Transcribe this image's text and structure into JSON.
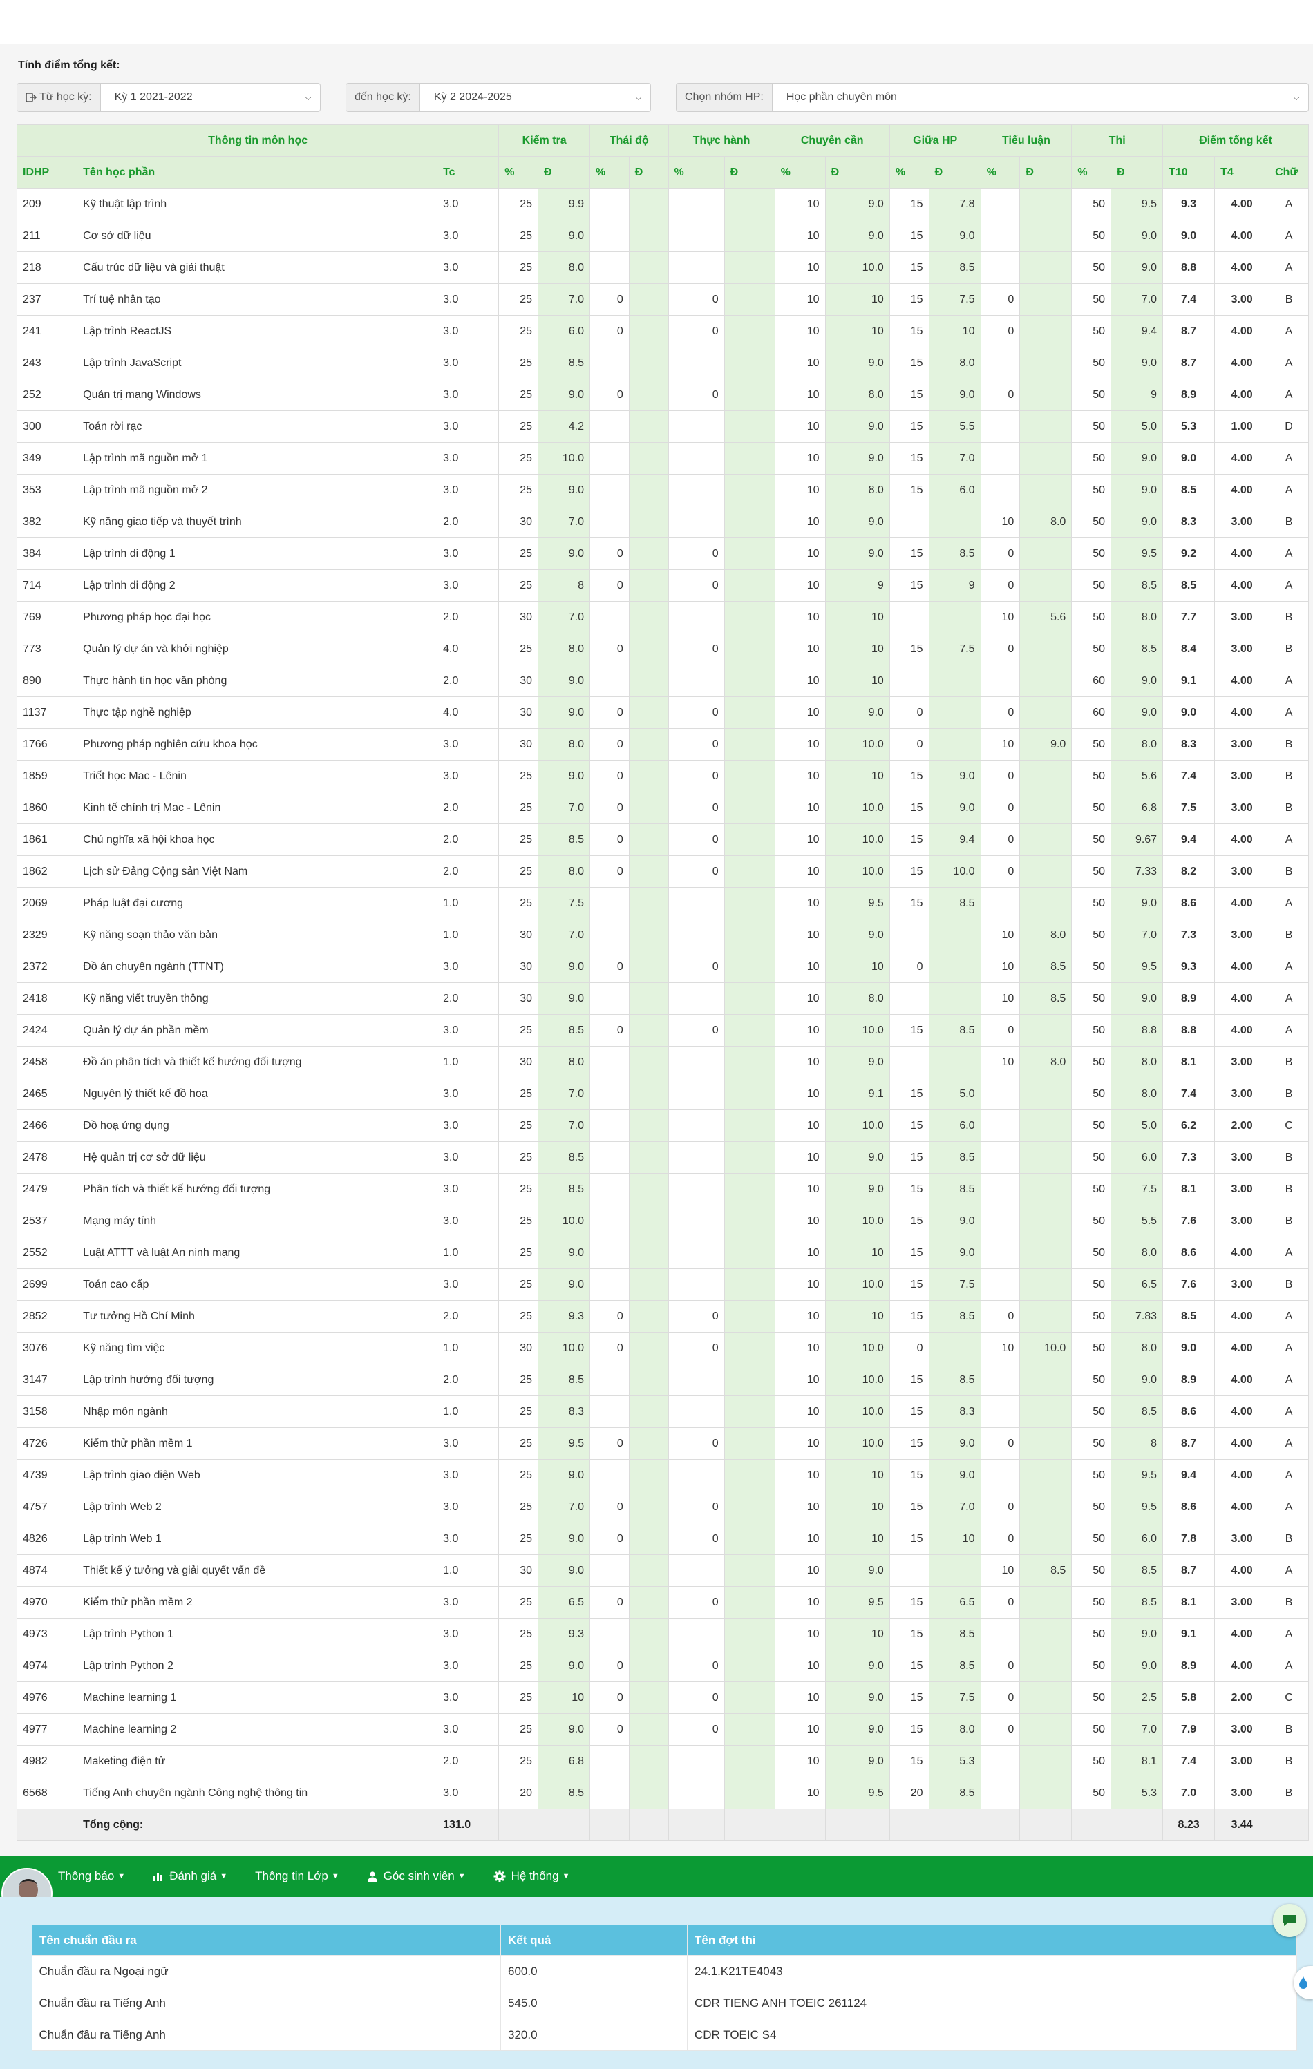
{
  "filters": {
    "title": "Tính điểm tổng kết:",
    "from_label": "Từ học kỳ:",
    "from_value": "Kỳ 1 2021-2022",
    "to_label": "đến học kỳ:",
    "to_value": "Kỳ 2 2024-2025",
    "group_label": "Chọn nhóm HP:",
    "group_value": "Học phần chuyên môn"
  },
  "grades_table": {
    "groups": [
      "Thông tin môn học",
      "Kiểm tra",
      "Thái độ",
      "Thực hành",
      "Chuyên cần",
      "Giữa HP",
      "Tiểu luận",
      "Thi",
      "Điểm tổng kết"
    ],
    "columns": [
      "IDHP",
      "Tên học phần",
      "Tc",
      "%",
      "Đ",
      "%",
      "Đ",
      "%",
      "Đ",
      "%",
      "Đ",
      "%",
      "Đ",
      "%",
      "Đ",
      "%",
      "Đ",
      "T10",
      "T4",
      "Chữ"
    ],
    "rows": [
      [
        "209",
        "Kỹ thuật lập trình",
        "3.0",
        "25",
        "9.9",
        "",
        "",
        "",
        "",
        "10",
        "9.0",
        "15",
        "7.8",
        "",
        "",
        "50",
        "9.5",
        "9.3",
        "4.00",
        "A"
      ],
      [
        "211",
        "Cơ sở dữ liệu",
        "3.0",
        "25",
        "9.0",
        "",
        "",
        "",
        "",
        "10",
        "9.0",
        "15",
        "9.0",
        "",
        "",
        "50",
        "9.0",
        "9.0",
        "4.00",
        "A"
      ],
      [
        "218",
        "Cấu trúc dữ liệu và giải thuật",
        "3.0",
        "25",
        "8.0",
        "",
        "",
        "",
        "",
        "10",
        "10.0",
        "15",
        "8.5",
        "",
        "",
        "50",
        "9.0",
        "8.8",
        "4.00",
        "A"
      ],
      [
        "237",
        "Trí tuệ nhân tạo",
        "3.0",
        "25",
        "7.0",
        "0",
        "",
        "0",
        "",
        "10",
        "10",
        "15",
        "7.5",
        "0",
        "",
        "50",
        "7.0",
        "7.4",
        "3.00",
        "B"
      ],
      [
        "241",
        "Lập trình ReactJS",
        "3.0",
        "25",
        "6.0",
        "0",
        "",
        "0",
        "",
        "10",
        "10",
        "15",
        "10",
        "0",
        "",
        "50",
        "9.4",
        "8.7",
        "4.00",
        "A"
      ],
      [
        "243",
        "Lập trình JavaScript",
        "3.0",
        "25",
        "8.5",
        "",
        "",
        "",
        "",
        "10",
        "9.0",
        "15",
        "8.0",
        "",
        "",
        "50",
        "9.0",
        "8.7",
        "4.00",
        "A"
      ],
      [
        "252",
        "Quản trị mạng Windows",
        "3.0",
        "25",
        "9.0",
        "0",
        "",
        "0",
        "",
        "10",
        "8.0",
        "15",
        "9.0",
        "0",
        "",
        "50",
        "9",
        "8.9",
        "4.00",
        "A"
      ],
      [
        "300",
        "Toán rời rạc",
        "3.0",
        "25",
        "4.2",
        "",
        "",
        "",
        "",
        "10",
        "9.0",
        "15",
        "5.5",
        "",
        "",
        "50",
        "5.0",
        "5.3",
        "1.00",
        "D"
      ],
      [
        "349",
        "Lập trình mã nguồn mở 1",
        "3.0",
        "25",
        "10.0",
        "",
        "",
        "",
        "",
        "10",
        "9.0",
        "15",
        "7.0",
        "",
        "",
        "50",
        "9.0",
        "9.0",
        "4.00",
        "A"
      ],
      [
        "353",
        "Lập trình mã nguồn mở 2",
        "3.0",
        "25",
        "9.0",
        "",
        "",
        "",
        "",
        "10",
        "8.0",
        "15",
        "6.0",
        "",
        "",
        "50",
        "9.0",
        "8.5",
        "4.00",
        "A"
      ],
      [
        "382",
        "Kỹ năng giao tiếp và thuyết trình",
        "2.0",
        "30",
        "7.0",
        "",
        "",
        "",
        "",
        "10",
        "9.0",
        "",
        "",
        "10",
        "8.0",
        "50",
        "9.0",
        "8.3",
        "3.00",
        "B"
      ],
      [
        "384",
        "Lập trình di động 1",
        "3.0",
        "25",
        "9.0",
        "0",
        "",
        "0",
        "",
        "10",
        "9.0",
        "15",
        "8.5",
        "0",
        "",
        "50",
        "9.5",
        "9.2",
        "4.00",
        "A"
      ],
      [
        "714",
        "Lập trình di động 2",
        "3.0",
        "25",
        "8",
        "0",
        "",
        "0",
        "",
        "10",
        "9",
        "15",
        "9",
        "0",
        "",
        "50",
        "8.5",
        "8.5",
        "4.00",
        "A"
      ],
      [
        "769",
        "Phương pháp học đại học",
        "2.0",
        "30",
        "7.0",
        "",
        "",
        "",
        "",
        "10",
        "10",
        "",
        "",
        "10",
        "5.6",
        "50",
        "8.0",
        "7.7",
        "3.00",
        "B"
      ],
      [
        "773",
        "Quản lý dự án và khởi nghiệp",
        "4.0",
        "25",
        "8.0",
        "0",
        "",
        "0",
        "",
        "10",
        "10",
        "15",
        "7.5",
        "0",
        "",
        "50",
        "8.5",
        "8.4",
        "3.00",
        "B"
      ],
      [
        "890",
        "Thực hành tin học văn phòng",
        "2.0",
        "30",
        "9.0",
        "",
        "",
        "",
        "",
        "10",
        "10",
        "",
        "",
        "",
        "",
        "60",
        "9.0",
        "9.1",
        "4.00",
        "A"
      ],
      [
        "1137",
        "Thực tập nghề nghiệp",
        "4.0",
        "30",
        "9.0",
        "0",
        "",
        "0",
        "",
        "10",
        "9.0",
        "0",
        "",
        "0",
        "",
        "60",
        "9.0",
        "9.0",
        "4.00",
        "A"
      ],
      [
        "1766",
        "Phương pháp nghiên cứu khoa học",
        "3.0",
        "30",
        "8.0",
        "0",
        "",
        "0",
        "",
        "10",
        "10.0",
        "0",
        "",
        "10",
        "9.0",
        "50",
        "8.0",
        "8.3",
        "3.00",
        "B"
      ],
      [
        "1859",
        "Triết học Mac - Lênin",
        "3.0",
        "25",
        "9.0",
        "0",
        "",
        "0",
        "",
        "10",
        "10",
        "15",
        "9.0",
        "0",
        "",
        "50",
        "5.6",
        "7.4",
        "3.00",
        "B"
      ],
      [
        "1860",
        "Kinh tế chính trị Mac - Lênin",
        "2.0",
        "25",
        "7.0",
        "0",
        "",
        "0",
        "",
        "10",
        "10.0",
        "15",
        "9.0",
        "0",
        "",
        "50",
        "6.8",
        "7.5",
        "3.00",
        "B"
      ],
      [
        "1861",
        "Chủ nghĩa xã hội khoa học",
        "2.0",
        "25",
        "8.5",
        "0",
        "",
        "0",
        "",
        "10",
        "10.0",
        "15",
        "9.4",
        "0",
        "",
        "50",
        "9.67",
        "9.4",
        "4.00",
        "A"
      ],
      [
        "1862",
        "Lịch sử Đảng Cộng sản Việt Nam",
        "2.0",
        "25",
        "8.0",
        "0",
        "",
        "0",
        "",
        "10",
        "10.0",
        "15",
        "10.0",
        "0",
        "",
        "50",
        "7.33",
        "8.2",
        "3.00",
        "B"
      ],
      [
        "2069",
        "Pháp luật đại cương",
        "1.0",
        "25",
        "7.5",
        "",
        "",
        "",
        "",
        "10",
        "9.5",
        "15",
        "8.5",
        "",
        "",
        "50",
        "9.0",
        "8.6",
        "4.00",
        "A"
      ],
      [
        "2329",
        "Kỹ năng soạn thảo văn bản",
        "1.0",
        "30",
        "7.0",
        "",
        "",
        "",
        "",
        "10",
        "9.0",
        "",
        "",
        "10",
        "8.0",
        "50",
        "7.0",
        "7.3",
        "3.00",
        "B"
      ],
      [
        "2372",
        "Đồ án chuyên ngành (TTNT)",
        "3.0",
        "30",
        "9.0",
        "0",
        "",
        "0",
        "",
        "10",
        "10",
        "0",
        "",
        "10",
        "8.5",
        "50",
        "9.5",
        "9.3",
        "4.00",
        "A"
      ],
      [
        "2418",
        "Kỹ năng viết truyền thông",
        "2.0",
        "30",
        "9.0",
        "",
        "",
        "",
        "",
        "10",
        "8.0",
        "",
        "",
        "10",
        "8.5",
        "50",
        "9.0",
        "8.9",
        "4.00",
        "A"
      ],
      [
        "2424",
        "Quản lý dự án phần mềm",
        "3.0",
        "25",
        "8.5",
        "0",
        "",
        "0",
        "",
        "10",
        "10.0",
        "15",
        "8.5",
        "0",
        "",
        "50",
        "8.8",
        "8.8",
        "4.00",
        "A"
      ],
      [
        "2458",
        "Đồ án phân tích và thiết kế hướng đối tượng",
        "1.0",
        "30",
        "8.0",
        "",
        "",
        "",
        "",
        "10",
        "9.0",
        "",
        "",
        "10",
        "8.0",
        "50",
        "8.0",
        "8.1",
        "3.00",
        "B"
      ],
      [
        "2465",
        "Nguyên lý thiết kế đồ hoạ",
        "3.0",
        "25",
        "7.0",
        "",
        "",
        "",
        "",
        "10",
        "9.1",
        "15",
        "5.0",
        "",
        "",
        "50",
        "8.0",
        "7.4",
        "3.00",
        "B"
      ],
      [
        "2466",
        "Đồ hoạ ứng dụng",
        "3.0",
        "25",
        "7.0",
        "",
        "",
        "",
        "",
        "10",
        "10.0",
        "15",
        "6.0",
        "",
        "",
        "50",
        "5.0",
        "6.2",
        "2.00",
        "C"
      ],
      [
        "2478",
        "Hệ quản trị cơ sở dữ liệu",
        "3.0",
        "25",
        "8.5",
        "",
        "",
        "",
        "",
        "10",
        "9.0",
        "15",
        "8.5",
        "",
        "",
        "50",
        "6.0",
        "7.3",
        "3.00",
        "B"
      ],
      [
        "2479",
        "Phân tích và thiết kế hướng đối tượng",
        "3.0",
        "25",
        "8.5",
        "",
        "",
        "",
        "",
        "10",
        "9.0",
        "15",
        "8.5",
        "",
        "",
        "50",
        "7.5",
        "8.1",
        "3.00",
        "B"
      ],
      [
        "2537",
        "Mạng máy tính",
        "3.0",
        "25",
        "10.0",
        "",
        "",
        "",
        "",
        "10",
        "10.0",
        "15",
        "9.0",
        "",
        "",
        "50",
        "5.5",
        "7.6",
        "3.00",
        "B"
      ],
      [
        "2552",
        "Luật ATTT và luật An ninh mạng",
        "1.0",
        "25",
        "9.0",
        "",
        "",
        "",
        "",
        "10",
        "10",
        "15",
        "9.0",
        "",
        "",
        "50",
        "8.0",
        "8.6",
        "4.00",
        "A"
      ],
      [
        "2699",
        "Toán cao cấp",
        "3.0",
        "25",
        "9.0",
        "",
        "",
        "",
        "",
        "10",
        "10.0",
        "15",
        "7.5",
        "",
        "",
        "50",
        "6.5",
        "7.6",
        "3.00",
        "B"
      ],
      [
        "2852",
        "Tư tưởng Hồ Chí Minh",
        "2.0",
        "25",
        "9.3",
        "0",
        "",
        "0",
        "",
        "10",
        "10",
        "15",
        "8.5",
        "0",
        "",
        "50",
        "7.83",
        "8.5",
        "4.00",
        "A"
      ],
      [
        "3076",
        "Kỹ năng tìm việc",
        "1.0",
        "30",
        "10.0",
        "0",
        "",
        "0",
        "",
        "10",
        "10.0",
        "0",
        "",
        "10",
        "10.0",
        "50",
        "8.0",
        "9.0",
        "4.00",
        "A"
      ],
      [
        "3147",
        "Lập trình hướng đối tượng",
        "2.0",
        "25",
        "8.5",
        "",
        "",
        "",
        "",
        "10",
        "10.0",
        "15",
        "8.5",
        "",
        "",
        "50",
        "9.0",
        "8.9",
        "4.00",
        "A"
      ],
      [
        "3158",
        "Nhập môn ngành",
        "1.0",
        "25",
        "8.3",
        "",
        "",
        "",
        "",
        "10",
        "10.0",
        "15",
        "8.3",
        "",
        "",
        "50",
        "8.5",
        "8.6",
        "4.00",
        "A"
      ],
      [
        "4726",
        "Kiểm thử phần mềm 1",
        "3.0",
        "25",
        "9.5",
        "0",
        "",
        "0",
        "",
        "10",
        "10.0",
        "15",
        "9.0",
        "0",
        "",
        "50",
        "8",
        "8.7",
        "4.00",
        "A"
      ],
      [
        "4739",
        "Lập trình giao diện Web",
        "3.0",
        "25",
        "9.0",
        "",
        "",
        "",
        "",
        "10",
        "10",
        "15",
        "9.0",
        "",
        "",
        "50",
        "9.5",
        "9.4",
        "4.00",
        "A"
      ],
      [
        "4757",
        "Lập trình Web 2",
        "3.0",
        "25",
        "7.0",
        "0",
        "",
        "0",
        "",
        "10",
        "10",
        "15",
        "7.0",
        "0",
        "",
        "50",
        "9.5",
        "8.6",
        "4.00",
        "A"
      ],
      [
        "4826",
        "Lập trình Web 1",
        "3.0",
        "25",
        "9.0",
        "0",
        "",
        "0",
        "",
        "10",
        "10",
        "15",
        "10",
        "0",
        "",
        "50",
        "6.0",
        "7.8",
        "3.00",
        "B"
      ],
      [
        "4874",
        "Thiết kế ý tưởng và giải quyết vấn đề",
        "1.0",
        "30",
        "9.0",
        "",
        "",
        "",
        "",
        "10",
        "9.0",
        "",
        "",
        "10",
        "8.5",
        "50",
        "8.5",
        "8.7",
        "4.00",
        "A"
      ],
      [
        "4970",
        "Kiểm thử phần mềm 2",
        "3.0",
        "25",
        "6.5",
        "0",
        "",
        "0",
        "",
        "10",
        "9.5",
        "15",
        "6.5",
        "0",
        "",
        "50",
        "8.5",
        "8.1",
        "3.00",
        "B"
      ],
      [
        "4973",
        "Lập trình Python 1",
        "3.0",
        "25",
        "9.3",
        "",
        "",
        "",
        "",
        "10",
        "10",
        "15",
        "8.5",
        "",
        "",
        "50",
        "9.0",
        "9.1",
        "4.00",
        "A"
      ],
      [
        "4974",
        "Lập trình Python 2",
        "3.0",
        "25",
        "9.0",
        "0",
        "",
        "0",
        "",
        "10",
        "9.0",
        "15",
        "8.5",
        "0",
        "",
        "50",
        "9.0",
        "8.9",
        "4.00",
        "A"
      ],
      [
        "4976",
        "Machine learning 1",
        "3.0",
        "25",
        "10",
        "0",
        "",
        "0",
        "",
        "10",
        "9.0",
        "15",
        "7.5",
        "0",
        "",
        "50",
        "2.5",
        "5.8",
        "2.00",
        "C"
      ],
      [
        "4977",
        "Machine learning 2",
        "3.0",
        "25",
        "9.0",
        "0",
        "",
        "0",
        "",
        "10",
        "9.0",
        "15",
        "8.0",
        "0",
        "",
        "50",
        "7.0",
        "7.9",
        "3.00",
        "B"
      ],
      [
        "4982",
        "Maketing điện tử",
        "2.0",
        "25",
        "6.8",
        "",
        "",
        "",
        "",
        "10",
        "9.0",
        "15",
        "5.3",
        "",
        "",
        "50",
        "8.1",
        "7.4",
        "3.00",
        "B"
      ],
      [
        "6568",
        "Tiếng Anh chuyên ngành Công nghệ thông tin",
        "3.0",
        "20",
        "8.5",
        "",
        "",
        "",
        "",
        "10",
        "9.5",
        "20",
        "8.5",
        "",
        "",
        "50",
        "5.3",
        "7.0",
        "3.00",
        "B"
      ]
    ],
    "total": {
      "label": "Tổng cộng:",
      "credits": "131.0",
      "t10": "8.23",
      "t4": "3.44"
    }
  },
  "navbar": {
    "items": [
      {
        "label": "Thông báo",
        "icon": "none"
      },
      {
        "label": "Đánh giá",
        "icon": "bar-chart-icon"
      },
      {
        "label": "Thông tin Lớp",
        "icon": "none"
      },
      {
        "label": "Góc sinh viên",
        "icon": "user-icon"
      },
      {
        "label": "Hệ thống",
        "icon": "gear-icon"
      }
    ]
  },
  "outcomes": {
    "headers": [
      "Tên chuẩn đầu ra",
      "Kết quả",
      "Tên đợt thi"
    ],
    "rows": [
      [
        "Chuẩn đầu ra Ngoại ngữ",
        "600.0",
        "24.1.K21TE4043"
      ],
      [
        "Chuẩn đầu ra Tiếng Anh",
        "545.0",
        "CDR TIENG ANH TOEIC 261124"
      ],
      [
        "Chuẩn đầu ra Tiếng Anh",
        "320.0",
        "CDR TOEIC S4"
      ]
    ]
  },
  "colors": {
    "accent": "#0b9a34",
    "header_bg": "#dff0d8",
    "header_text": "#1b9a2e",
    "info": "#5bc0de"
  }
}
